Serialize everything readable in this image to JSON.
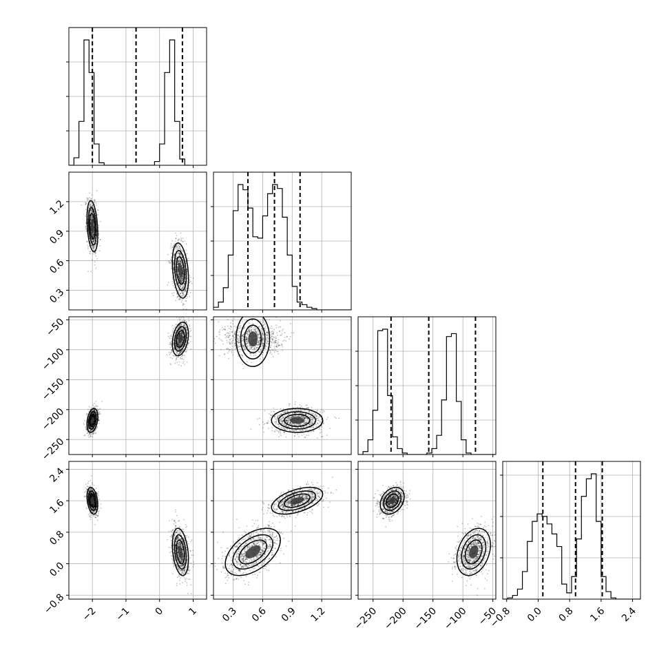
{
  "chart_data": {
    "type": "corner",
    "grid": true,
    "parameters": [
      {
        "range": [
          -2.7,
          1.4
        ],
        "ticks": [
          {
            "v": -2,
            "label": "−2"
          },
          {
            "v": -1,
            "label": "−1"
          },
          {
            "v": 0,
            "label": "0"
          },
          {
            "v": 1,
            "label": "1"
          }
        ],
        "quantiles": [
          -2.0,
          -0.7,
          0.68
        ],
        "hist": {
          "start": -2.7,
          "step": 0.15,
          "counts": [
            0,
            0.06,
            0.35,
            1.0,
            0.74,
            0.17,
            0.02,
            0,
            0,
            0,
            0,
            0,
            0,
            0,
            0,
            0,
            0,
            0.03,
            0.17,
            0.74,
            1.0,
            0.35,
            0.05,
            0
          ]
        },
        "hist_yticks": [
          0.25,
          0.5,
          0.75
        ]
      },
      {
        "range": [
          0.1,
          1.5
        ],
        "ticks": [
          {
            "v": 0.3,
            "label": "0.3"
          },
          {
            "v": 0.6,
            "label": "0.6"
          },
          {
            "v": 0.9,
            "label": "0.9"
          },
          {
            "v": 1.2,
            "label": "1.2"
          }
        ],
        "quantiles": [
          0.45,
          0.72,
          0.98
        ],
        "hist": {
          "start": 0.1,
          "step": 0.05,
          "counts": [
            0.02,
            0.06,
            0.17,
            0.42,
            0.76,
            0.96,
            0.92,
            0.78,
            0.56,
            0.55,
            0.72,
            0.89,
            0.96,
            0.93,
            0.71,
            0.42,
            0.18,
            0.06,
            0.04,
            0.02,
            0.01,
            0,
            0,
            0,
            0,
            0,
            0,
            0
          ]
        },
        "hist_yticks": [
          0.25,
          0.5,
          0.75
        ]
      },
      {
        "range": [
          -275,
          -45
        ],
        "ticks": [
          {
            "v": -250,
            "label": "−250"
          },
          {
            "v": -200,
            "label": "−200"
          },
          {
            "v": -150,
            "label": "−150"
          },
          {
            "v": -100,
            "label": "−100"
          },
          {
            "v": -50,
            "label": "−50"
          }
        ],
        "quantiles": [
          -220,
          -157,
          -79
        ],
        "hist": {
          "start": -275,
          "step": 8.2,
          "counts": [
            0,
            0.02,
            0.1,
            0.3,
            0.84,
            0.85,
            0.4,
            0.12,
            0.04,
            0.01,
            0,
            0,
            0,
            0,
            0.01,
            0.04,
            0.13,
            0.37,
            0.8,
            0.82,
            0.36,
            0.1,
            0.01,
            0,
            0,
            0,
            0,
            0
          ]
        },
        "hist_yticks": [
          0.25,
          0.5,
          0.75
        ]
      },
      {
        "range": [
          -0.9,
          2.6
        ],
        "ticks": [
          {
            "v": -0.8,
            "label": "−0.8"
          },
          {
            "v": 0.0,
            "label": "0.0"
          },
          {
            "v": 0.8,
            "label": "0.8"
          },
          {
            "v": 1.6,
            "label": "1.6"
          },
          {
            "v": 2.4,
            "label": "2.4"
          }
        ],
        "quantiles": [
          0.12,
          0.95,
          1.63
        ],
        "hist": {
          "start": -0.9,
          "step": 0.125,
          "counts": [
            0,
            0.01,
            0.03,
            0.08,
            0.22,
            0.46,
            0.62,
            0.68,
            0.66,
            0.6,
            0.52,
            0.42,
            0.12,
            0.05,
            0.18,
            0.48,
            0.82,
            0.96,
            1.0,
            0.62,
            0.18,
            0.06,
            0.01,
            0,
            0,
            0,
            0,
            0
          ]
        },
        "hist_yticks": [
          0.3,
          0.6,
          0.9
        ]
      }
    ],
    "modes": [
      {
        "mean": [
          -2.0,
          0.95,
          -218,
          1.6
        ],
        "sd": [
          0.08,
          0.13,
          10,
          0.17
        ],
        "weight": 0.5
      },
      {
        "mean": [
          0.62,
          0.5,
          -82,
          0.3
        ],
        "sd": [
          0.12,
          0.14,
          14,
          0.3
        ],
        "weight": 0.5
      }
    ]
  }
}
